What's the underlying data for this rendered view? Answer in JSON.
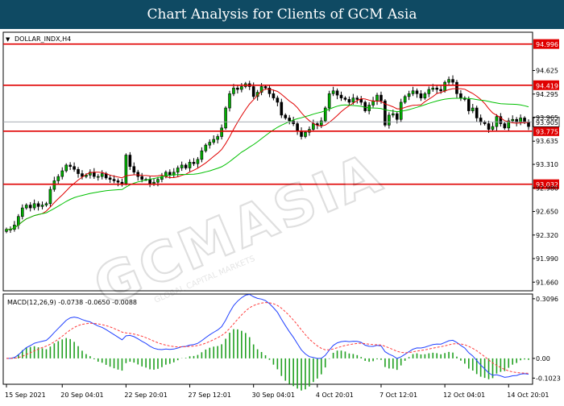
{
  "page": {
    "title": "Chart Analysis for Clients of GCM Asia"
  },
  "chart_data": {
    "type": "candlestick",
    "symbol_label": "DOLLAR_INDX,H4",
    "watermark": "GCMASIA",
    "watermark_sub": "GLOBAL CAPITAL MARKETS",
    "ylim": [
      91.55,
      95.15
    ],
    "price_ticks": [
      "94.625",
      "94.295",
      "93.965",
      "93.635",
      "93.310",
      "92.980",
      "92.650",
      "92.320",
      "91.990",
      "91.660"
    ],
    "tick_values": [
      94.625,
      94.295,
      93.965,
      93.635,
      93.31,
      92.98,
      92.65,
      92.32,
      91.99,
      91.66
    ],
    "levels": [
      {
        "label": "94.996",
        "value": 94.996,
        "color": "#e00000"
      },
      {
        "label": "94.419",
        "value": 94.419,
        "color": "#e00000"
      },
      {
        "label": "93.775",
        "value": 93.775,
        "color": "#e00000"
      },
      {
        "label": "93.032",
        "value": 93.032,
        "color": "#e00000"
      }
    ],
    "current_price": {
      "label": "93.905",
      "value": 93.905
    },
    "x_labels": [
      "15 Sep 2021",
      "20 Sep 04:01",
      "22 Sep 20:01",
      "27 Sep 12:01",
      "30 Sep 04:01",
      "4 Oct 20:01",
      "7 Oct 12:01",
      "12 Oct 04:01",
      "14 Oct 20:01"
    ],
    "x_label_index": [
      0,
      14,
      30,
      46,
      62,
      78,
      94,
      110,
      126
    ],
    "closes": [
      92.4,
      92.4,
      92.46,
      92.58,
      92.7,
      92.74,
      92.7,
      92.76,
      92.72,
      92.74,
      92.76,
      92.96,
      93.08,
      93.14,
      93.22,
      93.3,
      93.28,
      93.24,
      93.18,
      93.14,
      93.16,
      93.2,
      93.14,
      93.14,
      93.18,
      93.12,
      93.1,
      93.08,
      93.06,
      93.04,
      93.44,
      93.28,
      93.2,
      93.14,
      93.1,
      93.1,
      93.04,
      93.06,
      93.1,
      93.14,
      93.2,
      93.16,
      93.2,
      93.26,
      93.3,
      93.26,
      93.34,
      93.32,
      93.38,
      93.5,
      93.58,
      93.62,
      93.66,
      93.7,
      93.82,
      94.1,
      94.3,
      94.38,
      94.36,
      94.4,
      94.44,
      94.4,
      94.26,
      94.32,
      94.4,
      94.38,
      94.3,
      94.24,
      94.18,
      94.0,
      93.96,
      93.92,
      93.88,
      93.78,
      93.7,
      93.76,
      93.8,
      93.88,
      93.86,
      93.92,
      94.1,
      94.3,
      94.34,
      94.28,
      94.24,
      94.22,
      94.18,
      94.24,
      94.22,
      94.18,
      94.06,
      94.14,
      94.2,
      94.28,
      94.2,
      93.86,
      94.0,
      94.02,
      93.94,
      94.18,
      94.26,
      94.3,
      94.34,
      94.3,
      94.24,
      94.3,
      94.36,
      94.38,
      94.36,
      94.34,
      94.46,
      94.5,
      94.46,
      94.3,
      94.24,
      94.22,
      94.06,
      94.1,
      93.96,
      93.9,
      93.88,
      93.8,
      93.84,
      93.98,
      93.88,
      93.82,
      93.92,
      93.94,
      93.9,
      93.96,
      93.9,
      93.84
    ],
    "macd": {
      "label": "MACD(12,26,9) -0.0738 -0.0650 -0.0088",
      "ylim": [
        -0.13,
        0.33
      ],
      "ticks": [
        "0.3096",
        "0.00",
        "-0.1023"
      ],
      "tick_values": [
        0.3096,
        0.0,
        -0.1023
      ],
      "signal_color": "#ff3b3b",
      "macd_color": "#2040ff",
      "hist_color": "#20a020"
    }
  }
}
